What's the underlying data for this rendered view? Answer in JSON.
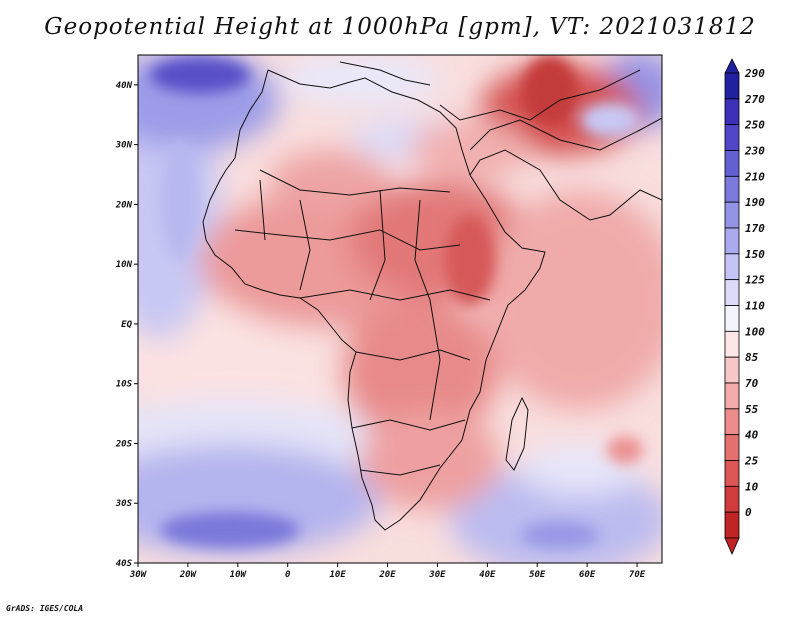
{
  "title": "Geopotential Height at 1000hPa [gpm], VT: 2021031812",
  "credit": "GrADS: IGES/COLA",
  "map": {
    "variable": "Geopotential Height",
    "level": "1000hPa",
    "units": "gpm",
    "valid_time": "2021031812",
    "lon_range": [
      -30,
      75
    ],
    "lat_range": [
      -40,
      45
    ],
    "lat_labels": [
      {
        "value": 40,
        "text": "40N"
      },
      {
        "value": 30,
        "text": "30N"
      },
      {
        "value": 20,
        "text": "20N"
      },
      {
        "value": 10,
        "text": "10N"
      },
      {
        "value": 0,
        "text": "EQ"
      },
      {
        "value": -10,
        "text": "10S"
      },
      {
        "value": -20,
        "text": "20S"
      },
      {
        "value": -30,
        "text": "30S"
      },
      {
        "value": -40,
        "text": "40S"
      }
    ],
    "lon_labels": [
      {
        "value": -30,
        "text": "30W"
      },
      {
        "value": -20,
        "text": "20W"
      },
      {
        "value": -10,
        "text": "10W"
      },
      {
        "value": 0,
        "text": "0"
      },
      {
        "value": 10,
        "text": "10E"
      },
      {
        "value": 20,
        "text": "20E"
      },
      {
        "value": 30,
        "text": "30E"
      },
      {
        "value": 40,
        "text": "40E"
      },
      {
        "value": 50,
        "text": "50E"
      },
      {
        "value": 60,
        "text": "60E"
      },
      {
        "value": 70,
        "text": "70E"
      }
    ]
  },
  "colorbar": {
    "levels": [
      {
        "label": "290",
        "color": "#2020a0"
      },
      {
        "label": "270",
        "color": "#3c30b8"
      },
      {
        "label": "250",
        "color": "#5046c8"
      },
      {
        "label": "230",
        "color": "#6460d2"
      },
      {
        "label": "210",
        "color": "#7c7adc"
      },
      {
        "label": "190",
        "color": "#9494e6"
      },
      {
        "label": "170",
        "color": "#aaaaee"
      },
      {
        "label": "150",
        "color": "#c4c4f6"
      },
      {
        "label": "125",
        "color": "#dcdcfa"
      },
      {
        "label": "110",
        "color": "#f4f4fc"
      },
      {
        "label": "100",
        "color": "#fce6e6"
      },
      {
        "label": "85",
        "color": "#f8c8c8"
      },
      {
        "label": "70",
        "color": "#f2aaaa"
      },
      {
        "label": "55",
        "color": "#ec8c8c"
      },
      {
        "label": "40",
        "color": "#e47070"
      },
      {
        "label": "25",
        "color": "#dc5656"
      },
      {
        "label": "10",
        "color": "#d03c3c"
      },
      {
        "label": "0",
        "color": "#c02424"
      }
    ]
  }
}
